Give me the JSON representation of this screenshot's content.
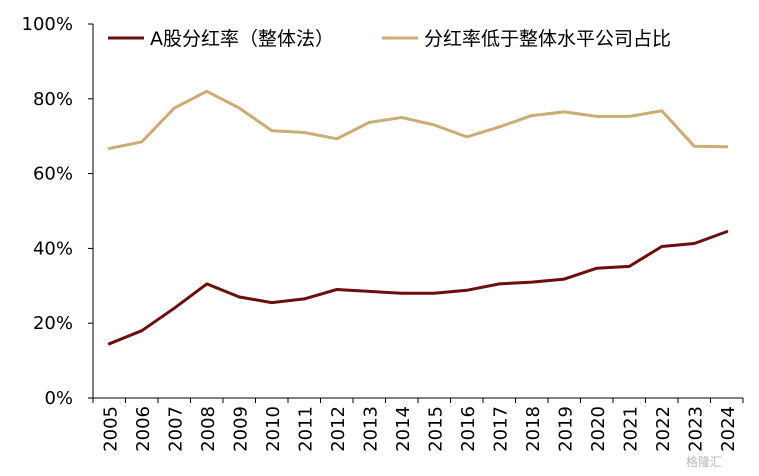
{
  "chart_data": {
    "type": "line",
    "title": "",
    "xlabel": "",
    "ylabel": "",
    "x": [
      "2005",
      "2006",
      "2007",
      "2008",
      "2009",
      "2010",
      "2011",
      "2012",
      "2013",
      "2014",
      "2015",
      "2016",
      "2017",
      "2018",
      "2019",
      "2020",
      "2021",
      "2022",
      "2023",
      "2024"
    ],
    "ylim": [
      0,
      100
    ],
    "yticks": [
      "0%",
      "20%",
      "40%",
      "60%",
      "80%",
      "100%"
    ],
    "legend_position": "top",
    "grid": false,
    "series": [
      {
        "name": "A股分红率（整体法）",
        "color": "#6b0e0e",
        "values": [
          14.5,
          18.0,
          24.0,
          30.5,
          27.0,
          25.5,
          26.5,
          29.0,
          28.5,
          28.0,
          28.0,
          28.8,
          30.5,
          31.0,
          31.8,
          34.7,
          35.2,
          40.5,
          41.3,
          44.5
        ]
      },
      {
        "name": "分红率低于整体水平公司占比",
        "color": "#c9ad72",
        "values": [
          66.7,
          68.5,
          77.5,
          82.0,
          77.5,
          71.5,
          71.0,
          69.3,
          73.7,
          75.0,
          73.0,
          69.8,
          72.5,
          75.5,
          76.5,
          75.3,
          75.3,
          76.8,
          67.3,
          67.2
        ]
      }
    ]
  },
  "watermark": "格隆汇"
}
